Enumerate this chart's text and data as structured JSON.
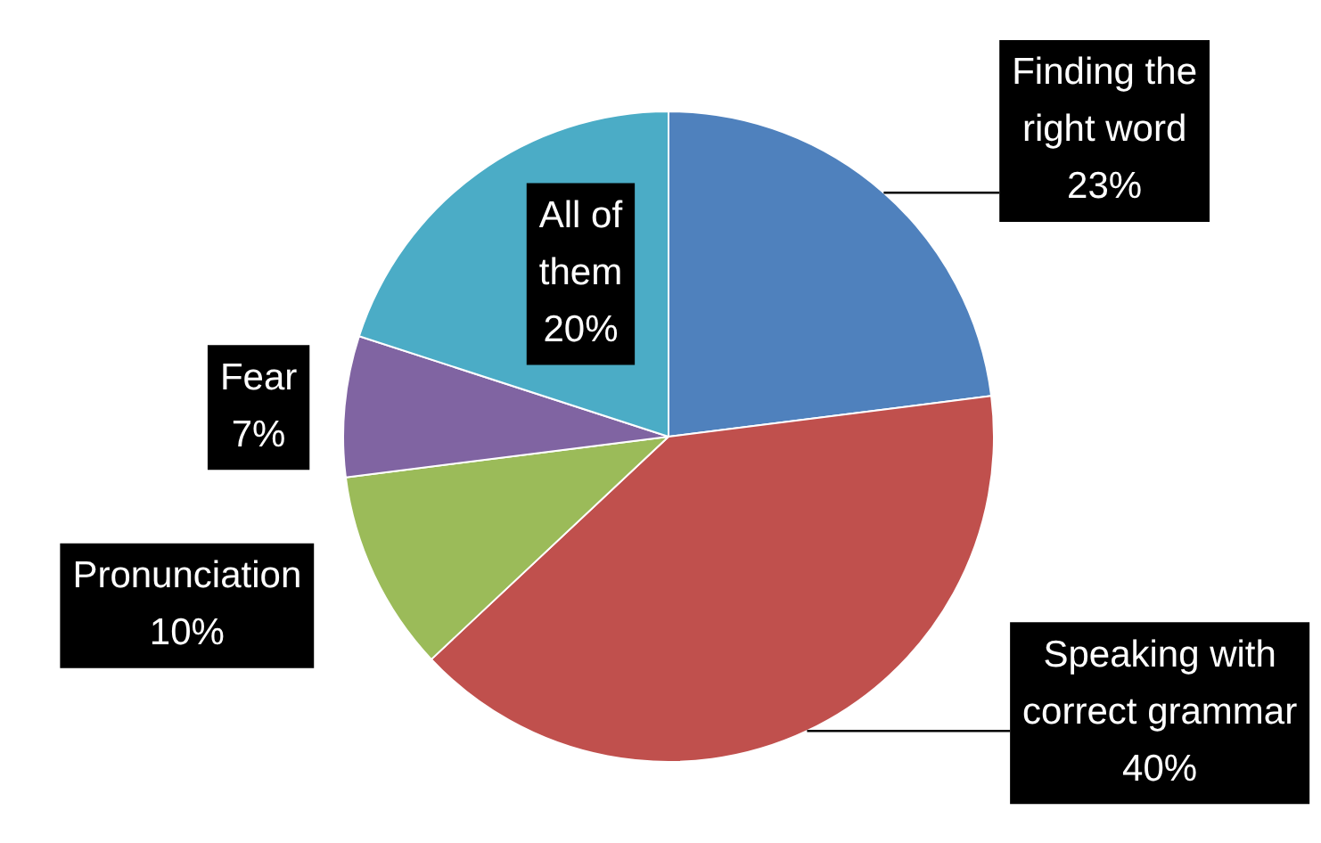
{
  "chart_data": {
    "type": "pie",
    "categories": [
      "Finding the right word",
      "Speaking with correct grammar",
      "Pronunciation",
      "Fear",
      "All of them"
    ],
    "values": [
      23,
      40,
      10,
      7,
      20
    ],
    "value_labels": [
      "23%",
      "40%",
      "10%",
      "7%",
      "20%"
    ],
    "colors": [
      "#4f81bd",
      "#c0504d",
      "#9bbb59",
      "#8064a2",
      "#4bacc6"
    ]
  }
}
